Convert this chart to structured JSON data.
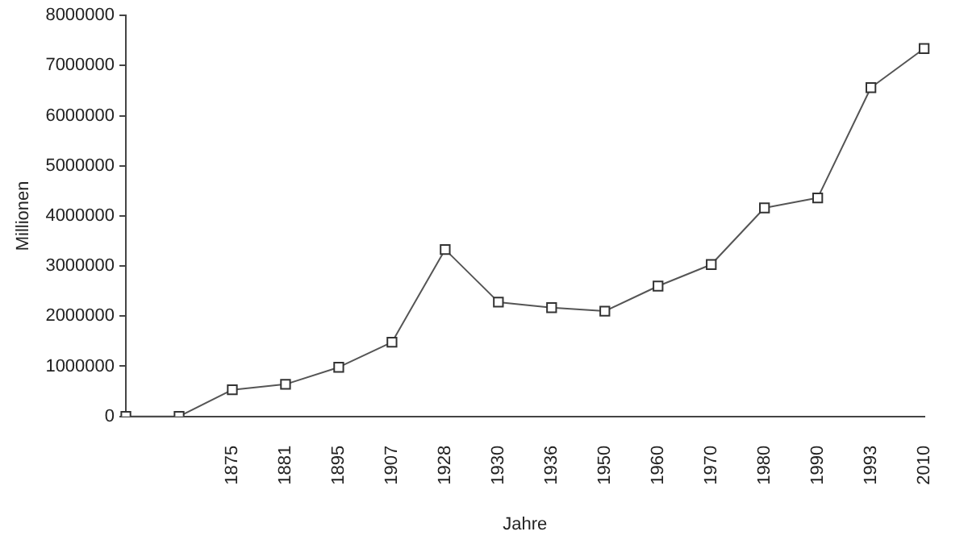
{
  "chart_data": {
    "type": "line",
    "xlabel": "Jahre",
    "ylabel": "Millionen",
    "categories": [
      null,
      null,
      "1875",
      "1881",
      "1895",
      "1907",
      "1928",
      "1930",
      "1936",
      "1950",
      "1960",
      "1970",
      "1980",
      "1990",
      "1993",
      "2010"
    ],
    "series": [
      {
        "color": "#555555",
        "values": [
          0,
          0,
          530000,
          640000,
          980000,
          1480000,
          3330000,
          2280000,
          2170000,
          2100000,
          2600000,
          3030000,
          4160000,
          4360000,
          6560000,
          7340000
        ]
      }
    ],
    "ylim": [
      0,
      8000000
    ],
    "yticks": [
      0,
      1000000,
      2000000,
      3000000,
      4000000,
      5000000,
      6000000,
      7000000,
      8000000
    ],
    "grid": false,
    "legend": false,
    "marker": "square",
    "line_style": "solid"
  }
}
